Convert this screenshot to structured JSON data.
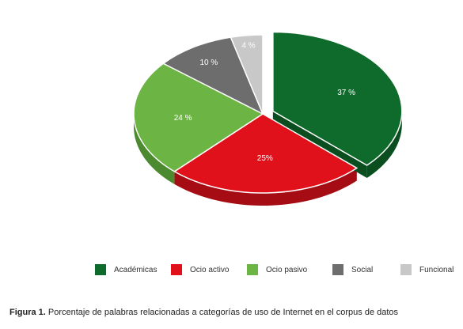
{
  "chart_data": {
    "type": "pie",
    "categories": [
      "Académicas",
      "Ocio activo",
      "Ocio pasivo",
      "Social",
      "Funcional"
    ],
    "values": [
      37,
      25,
      24,
      10,
      4
    ],
    "data_labels": [
      "37 %",
      "25%",
      "24 %",
      "10 %",
      "4 %"
    ],
    "colors": [
      "#0f6b2b",
      "#e0111b",
      "#6cb544",
      "#6d6d6d",
      "#c8c8c8"
    ],
    "side_colors": [
      "#0a4d1e",
      "#a50c14",
      "#4c8a2f",
      "#4f4f4f",
      "#9a9a9a"
    ],
    "legend_position": "bottom",
    "three_d": true,
    "exploded_slice": "Académicas"
  },
  "caption": {
    "label": "Figura 1.",
    "text": " Porcentaje de palabras relacionadas a categorías de uso de Internet en el corpus de datos"
  }
}
